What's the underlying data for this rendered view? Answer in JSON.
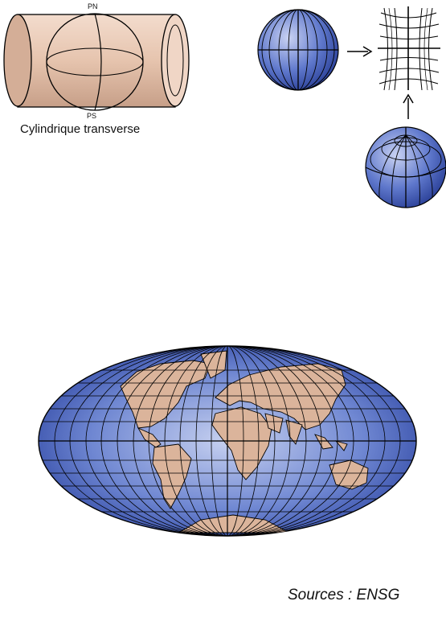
{
  "diagram": {
    "north_pole_label": "PN",
    "south_pole_label": "PS",
    "caption": "Cylindrique transverse"
  },
  "footer": {
    "source": "Sources : ENSG"
  },
  "colors": {
    "cylinder": "#e6c6b2",
    "globe_light": "#aab8e6",
    "globe_dark": "#2c46a6",
    "land": "#dbb49b",
    "line": "#000000"
  }
}
